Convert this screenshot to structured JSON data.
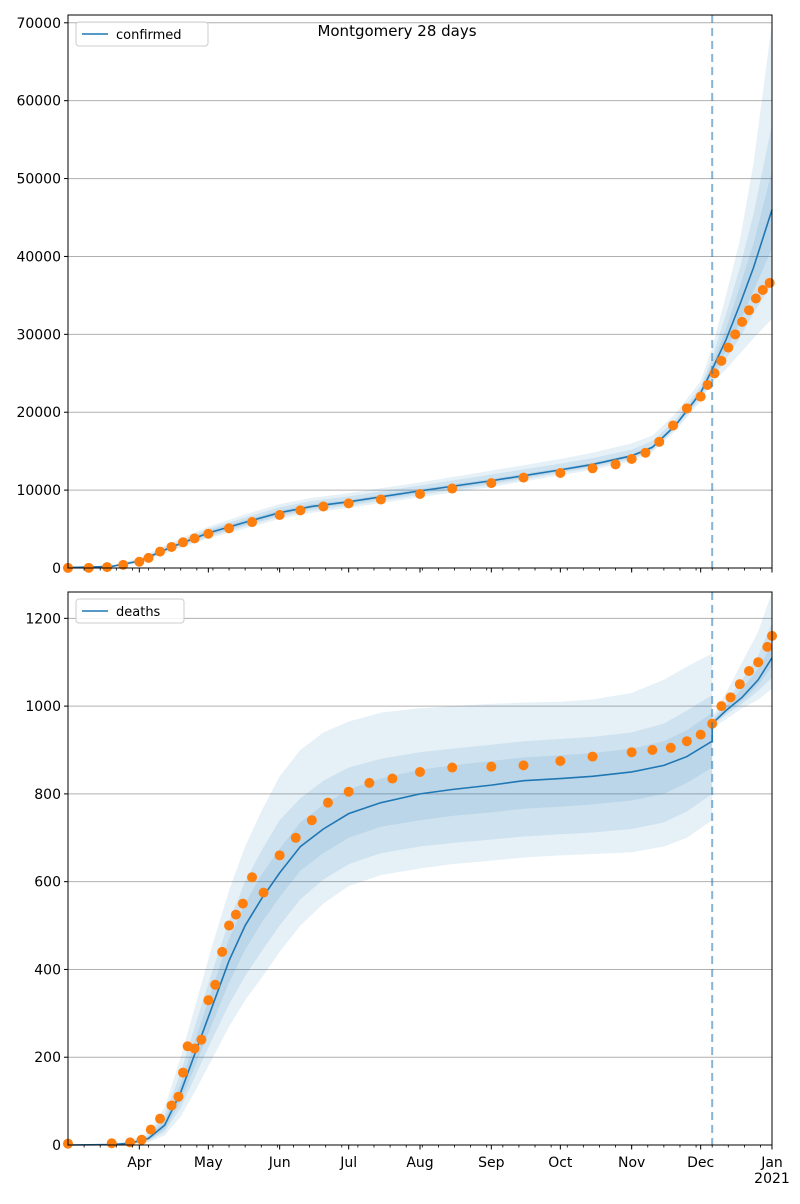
{
  "figure": {
    "title": "Montgomery 28 days"
  },
  "colors": {
    "model": "#1f77b4",
    "observed": "#ff7f0e",
    "band": "#1f77b4",
    "cutoff": "#1f77b4",
    "grid": "#b0b0b0"
  },
  "chart_data": [
    {
      "type": "line",
      "panel": "top",
      "legend_label": "confirmed",
      "legend_position": "top-left",
      "grid": "horizontal",
      "xlim": [
        "2020-03-01",
        "2021-01-01"
      ],
      "ylim": [
        0,
        71000
      ],
      "yticks": [
        0,
        10000,
        20000,
        30000,
        40000,
        50000,
        60000,
        70000
      ],
      "xticks": [
        {
          "date": "2020-04-01",
          "label": "Apr"
        },
        {
          "date": "2020-05-01",
          "label": "May"
        },
        {
          "date": "2020-06-01",
          "label": "Jun"
        },
        {
          "date": "2020-07-01",
          "label": "Jul"
        },
        {
          "date": "2020-08-01",
          "label": "Aug"
        },
        {
          "date": "2020-09-01",
          "label": "Sep"
        },
        {
          "date": "2020-10-01",
          "label": "Oct"
        },
        {
          "date": "2020-11-01",
          "label": "Nov"
        },
        {
          "date": "2020-12-01",
          "label": "Dec"
        },
        {
          "date": "2021-01-01",
          "label": "Jan",
          "sub": "2021"
        }
      ],
      "cutoff_date": "2020-12-06",
      "model": {
        "x": [
          "2020-03-01",
          "2020-03-20",
          "2020-04-01",
          "2020-04-15",
          "2020-05-01",
          "2020-05-15",
          "2020-06-01",
          "2020-06-15",
          "2020-07-01",
          "2020-08-01",
          "2020-09-01",
          "2020-10-01",
          "2020-10-15",
          "2020-11-01",
          "2020-11-10",
          "2020-11-20",
          "2020-12-01",
          "2020-12-06",
          "2020-12-12",
          "2020-12-18",
          "2020-12-24",
          "2021-01-01"
        ],
        "y": [
          50,
          200,
          900,
          2700,
          4500,
          5700,
          7100,
          7900,
          8500,
          9900,
          11200,
          12600,
          13300,
          14400,
          15500,
          18300,
          22500,
          25500,
          29300,
          33800,
          38600,
          46000
        ],
        "bands": [
          {
            "lower": [
              20,
              100,
              600,
              2200,
              3800,
              4900,
              6300,
              7100,
              7700,
              9100,
              10400,
              11900,
              12600,
              13700,
              14900,
              17600,
              21400,
              23800,
              25500,
              27500,
              29500,
              32000
            ],
            "upper": [
              90,
              350,
              1250,
              3300,
              5300,
              6700,
              8200,
              9000,
              9600,
              11000,
              12500,
              14000,
              14800,
              16000,
              17000,
              19800,
              24000,
              28300,
              35000,
              42000,
              52000,
              70000
            ]
          },
          {
            "lower": [
              30,
              130,
              700,
              2400,
              4000,
              5200,
              6600,
              7400,
              8000,
              9400,
              10700,
              12200,
              12900,
              14000,
              15100,
              17900,
              21800,
              24300,
              26800,
              29600,
              32700,
              36500
            ],
            "upper": [
              75,
              290,
              1100,
              3050,
              5000,
              6300,
              7800,
              8600,
              9200,
              10600,
              12000,
              13400,
              14100,
              15200,
              16300,
              19000,
              23300,
              27000,
              32600,
              38500,
              45500,
              57000
            ]
          },
          {
            "lower": [
              40,
              160,
              780,
              2550,
              4200,
              5400,
              6800,
              7650,
              8250,
              9650,
              10950,
              12400,
              13100,
              14200,
              15300,
              18100,
              22100,
              24800,
              27900,
              31500,
              35600,
              41000
            ],
            "upper": [
              62,
              240,
              1000,
              2850,
              4800,
              6000,
              7400,
              8200,
              8750,
              10150,
              11450,
              12800,
              13500,
              14600,
              15700,
              18600,
              22900,
              26200,
              30700,
              36100,
              41700,
              51000
            ]
          }
        ]
      },
      "observed": {
        "x": [
          "2020-03-01",
          "2020-03-10",
          "2020-03-18",
          "2020-03-25",
          "2020-04-01",
          "2020-04-05",
          "2020-04-10",
          "2020-04-15",
          "2020-04-20",
          "2020-04-25",
          "2020-05-01",
          "2020-05-10",
          "2020-05-20",
          "2020-06-01",
          "2020-06-10",
          "2020-06-20",
          "2020-07-01",
          "2020-07-15",
          "2020-08-01",
          "2020-08-15",
          "2020-09-01",
          "2020-09-15",
          "2020-10-01",
          "2020-10-15",
          "2020-10-25",
          "2020-11-01",
          "2020-11-07",
          "2020-11-13",
          "2020-11-19",
          "2020-11-25",
          "2020-12-01",
          "2020-12-04",
          "2020-12-07",
          "2020-12-10",
          "2020-12-13",
          "2020-12-16",
          "2020-12-19",
          "2020-12-22",
          "2020-12-25",
          "2020-12-28",
          "2020-12-31"
        ],
        "y": [
          10,
          20,
          120,
          400,
          800,
          1300,
          2100,
          2700,
          3300,
          3800,
          4400,
          5100,
          5900,
          6800,
          7400,
          7900,
          8300,
          8800,
          9500,
          10200,
          10900,
          11600,
          12200,
          12800,
          13300,
          14000,
          14800,
          16200,
          18300,
          20500,
          22000,
          23500,
          25000,
          26600,
          28300,
          30000,
          31600,
          33100,
          34600,
          35700,
          36600
        ]
      }
    },
    {
      "type": "line",
      "panel": "bottom",
      "legend_label": "deaths",
      "legend_position": "top-left",
      "grid": "horizontal",
      "xlim": [
        "2020-03-01",
        "2021-01-01"
      ],
      "ylim": [
        0,
        1260
      ],
      "yticks": [
        0,
        200,
        400,
        600,
        800,
        1000,
        1200
      ],
      "xticks": [
        {
          "date": "2020-04-01",
          "label": "Apr"
        },
        {
          "date": "2020-05-01",
          "label": "May"
        },
        {
          "date": "2020-06-01",
          "label": "Jun"
        },
        {
          "date": "2020-07-01",
          "label": "Jul"
        },
        {
          "date": "2020-08-01",
          "label": "Aug"
        },
        {
          "date": "2020-09-01",
          "label": "Sep"
        },
        {
          "date": "2020-10-01",
          "label": "Oct"
        },
        {
          "date": "2020-11-01",
          "label": "Nov"
        },
        {
          "date": "2020-12-01",
          "label": "Dec"
        },
        {
          "date": "2021-01-01",
          "label": "Jan",
          "sub": "2021"
        }
      ],
      "cutoff_date": "2020-12-06",
      "model": {
        "x": [
          "2020-03-01",
          "2020-03-20",
          "2020-03-28",
          "2020-04-05",
          "2020-04-12",
          "2020-04-19",
          "2020-04-26",
          "2020-05-03",
          "2020-05-10",
          "2020-05-17",
          "2020-05-24",
          "2020-06-01",
          "2020-06-10",
          "2020-06-20",
          "2020-07-01",
          "2020-07-15",
          "2020-08-01",
          "2020-08-15",
          "2020-09-01",
          "2020-09-15",
          "2020-10-01",
          "2020-10-15",
          "2020-11-01",
          "2020-11-15",
          "2020-11-25",
          "2020-12-06",
          "2020-12-06",
          "2020-12-12",
          "2020-12-19",
          "2020-12-26",
          "2021-01-01"
        ],
        "y": [
          0,
          1,
          4,
          15,
          45,
          120,
          220,
          320,
          420,
          500,
          560,
          620,
          680,
          720,
          755,
          780,
          800,
          810,
          820,
          830,
          835,
          840,
          850,
          865,
          885,
          920,
          960,
          990,
          1020,
          1060,
          1110
        ],
        "bands": [
          {
            "lower": [
              0,
              0,
              1,
              6,
              22,
              65,
              130,
              200,
              270,
              330,
              380,
              440,
              500,
              550,
              590,
              615,
              630,
              640,
              648,
              655,
              660,
              663,
              667,
              680,
              700,
              740,
              950,
              970,
              995,
              1015,
              1040
            ],
            "upper": [
              1,
              3,
              9,
              30,
              85,
              200,
              330,
              460,
              580,
              680,
              760,
              840,
              900,
              940,
              965,
              985,
              995,
              1000,
              1005,
              1008,
              1010,
              1015,
              1030,
              1060,
              1090,
              1120,
              975,
              1030,
              1100,
              1170,
              1260
            ]
          },
          {
            "lower": [
              0,
              0,
              2,
              9,
              30,
              85,
              165,
              245,
              320,
              385,
              440,
              500,
              560,
              605,
              640,
              665,
              680,
              688,
              696,
              703,
              708,
              712,
              720,
              735,
              760,
              800,
              955,
              980,
              1005,
              1035,
              1065
            ],
            "upper": [
              1,
              2,
              7,
              23,
              68,
              165,
              285,
              400,
              510,
              600,
              670,
              740,
              790,
              830,
              860,
              880,
              895,
              903,
              912,
              920,
              925,
              930,
              940,
              960,
              990,
              1025,
              970,
              1010,
              1060,
              1115,
              1190
            ]
          },
          {
            "lower": [
              0,
              1,
              3,
              11,
              36,
              100,
              190,
              280,
              370,
              445,
              505,
              565,
              625,
              665,
              700,
              725,
              740,
              750,
              758,
              766,
              771,
              776,
              785,
              800,
              825,
              860,
              957,
              985,
              1012,
              1048,
              1090
            ],
            "upper": [
              1,
              2,
              5,
              19,
              56,
              140,
              250,
              360,
              470,
              550,
              615,
              675,
              735,
              775,
              810,
              835,
              855,
              865,
              875,
              883,
              888,
              893,
              903,
              920,
              945,
              985,
              965,
              1000,
              1040,
              1085,
              1140
            ]
          }
        ]
      },
      "observed": {
        "x": [
          "2020-03-01",
          "2020-03-20",
          "2020-03-28",
          "2020-04-02",
          "2020-04-06",
          "2020-04-10",
          "2020-04-15",
          "2020-04-18",
          "2020-04-20",
          "2020-04-22",
          "2020-04-25",
          "2020-04-28",
          "2020-05-01",
          "2020-05-04",
          "2020-05-07",
          "2020-05-10",
          "2020-05-13",
          "2020-05-16",
          "2020-05-20",
          "2020-05-25",
          "2020-06-01",
          "2020-06-08",
          "2020-06-15",
          "2020-06-22",
          "2020-07-01",
          "2020-07-10",
          "2020-07-20",
          "2020-08-01",
          "2020-08-15",
          "2020-09-01",
          "2020-09-15",
          "2020-10-01",
          "2020-10-15",
          "2020-11-01",
          "2020-11-10",
          "2020-11-18",
          "2020-11-25",
          "2020-12-01",
          "2020-12-06",
          "2020-12-10",
          "2020-12-14",
          "2020-12-18",
          "2020-12-22",
          "2020-12-26",
          "2020-12-30",
          "2021-01-01"
        ],
        "y": [
          3,
          4,
          6,
          12,
          35,
          60,
          90,
          110,
          165,
          225,
          220,
          240,
          330,
          365,
          440,
          500,
          525,
          550,
          610,
          575,
          660,
          700,
          740,
          780,
          805,
          825,
          835,
          850,
          860,
          862,
          865,
          875,
          885,
          895,
          900,
          905,
          920,
          935,
          960,
          1000,
          1020,
          1050,
          1080,
          1100,
          1135,
          1160
        ]
      }
    }
  ]
}
